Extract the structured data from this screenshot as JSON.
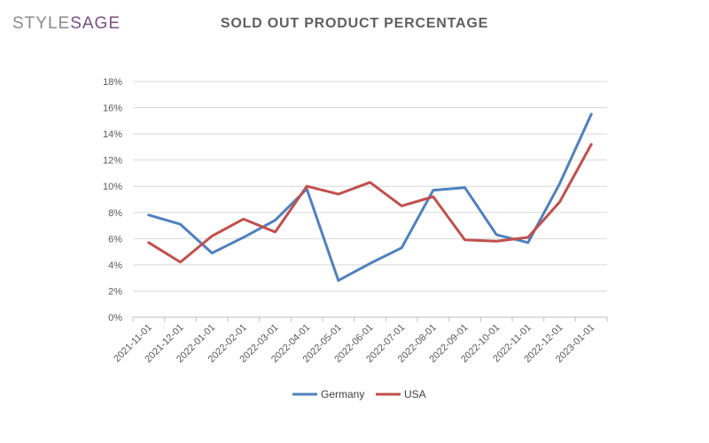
{
  "logo": {
    "part1": "STYLE",
    "part2": "SAGE"
  },
  "chart_data": {
    "type": "line",
    "title": "SOLD OUT PRODUCT PERCENTAGE",
    "xlabel": "",
    "ylabel": "",
    "categories": [
      "2021-11-01",
      "2021-12-01",
      "2022-01-01",
      "2022-02-01",
      "2022-03-01",
      "2022-04-01",
      "2022-05-01",
      "2022-06-01",
      "2022-07-01",
      "2022-08-01",
      "2022-09-01",
      "2022-10-01",
      "2022-11-01",
      "2022-12-01",
      "2023-01-01"
    ],
    "yticks": [
      "0%",
      "2%",
      "4%",
      "6%",
      "8%",
      "10%",
      "12%",
      "14%",
      "16%",
      "18%"
    ],
    "ylim": [
      0,
      18
    ],
    "grid": true,
    "legend_position": "bottom",
    "series": [
      {
        "name": "Germany",
        "color": "#4f81bd",
        "values": [
          7.8,
          7.1,
          4.9,
          6.1,
          7.4,
          9.8,
          2.8,
          4.1,
          5.3,
          9.7,
          9.9,
          6.3,
          5.7,
          10.2,
          15.5
        ]
      },
      {
        "name": "USA",
        "color": "#c0504d",
        "values": [
          5.7,
          4.2,
          6.2,
          7.5,
          6.5,
          10.0,
          9.4,
          10.3,
          8.5,
          9.2,
          5.9,
          5.8,
          6.1,
          8.8,
          13.2
        ]
      }
    ]
  }
}
